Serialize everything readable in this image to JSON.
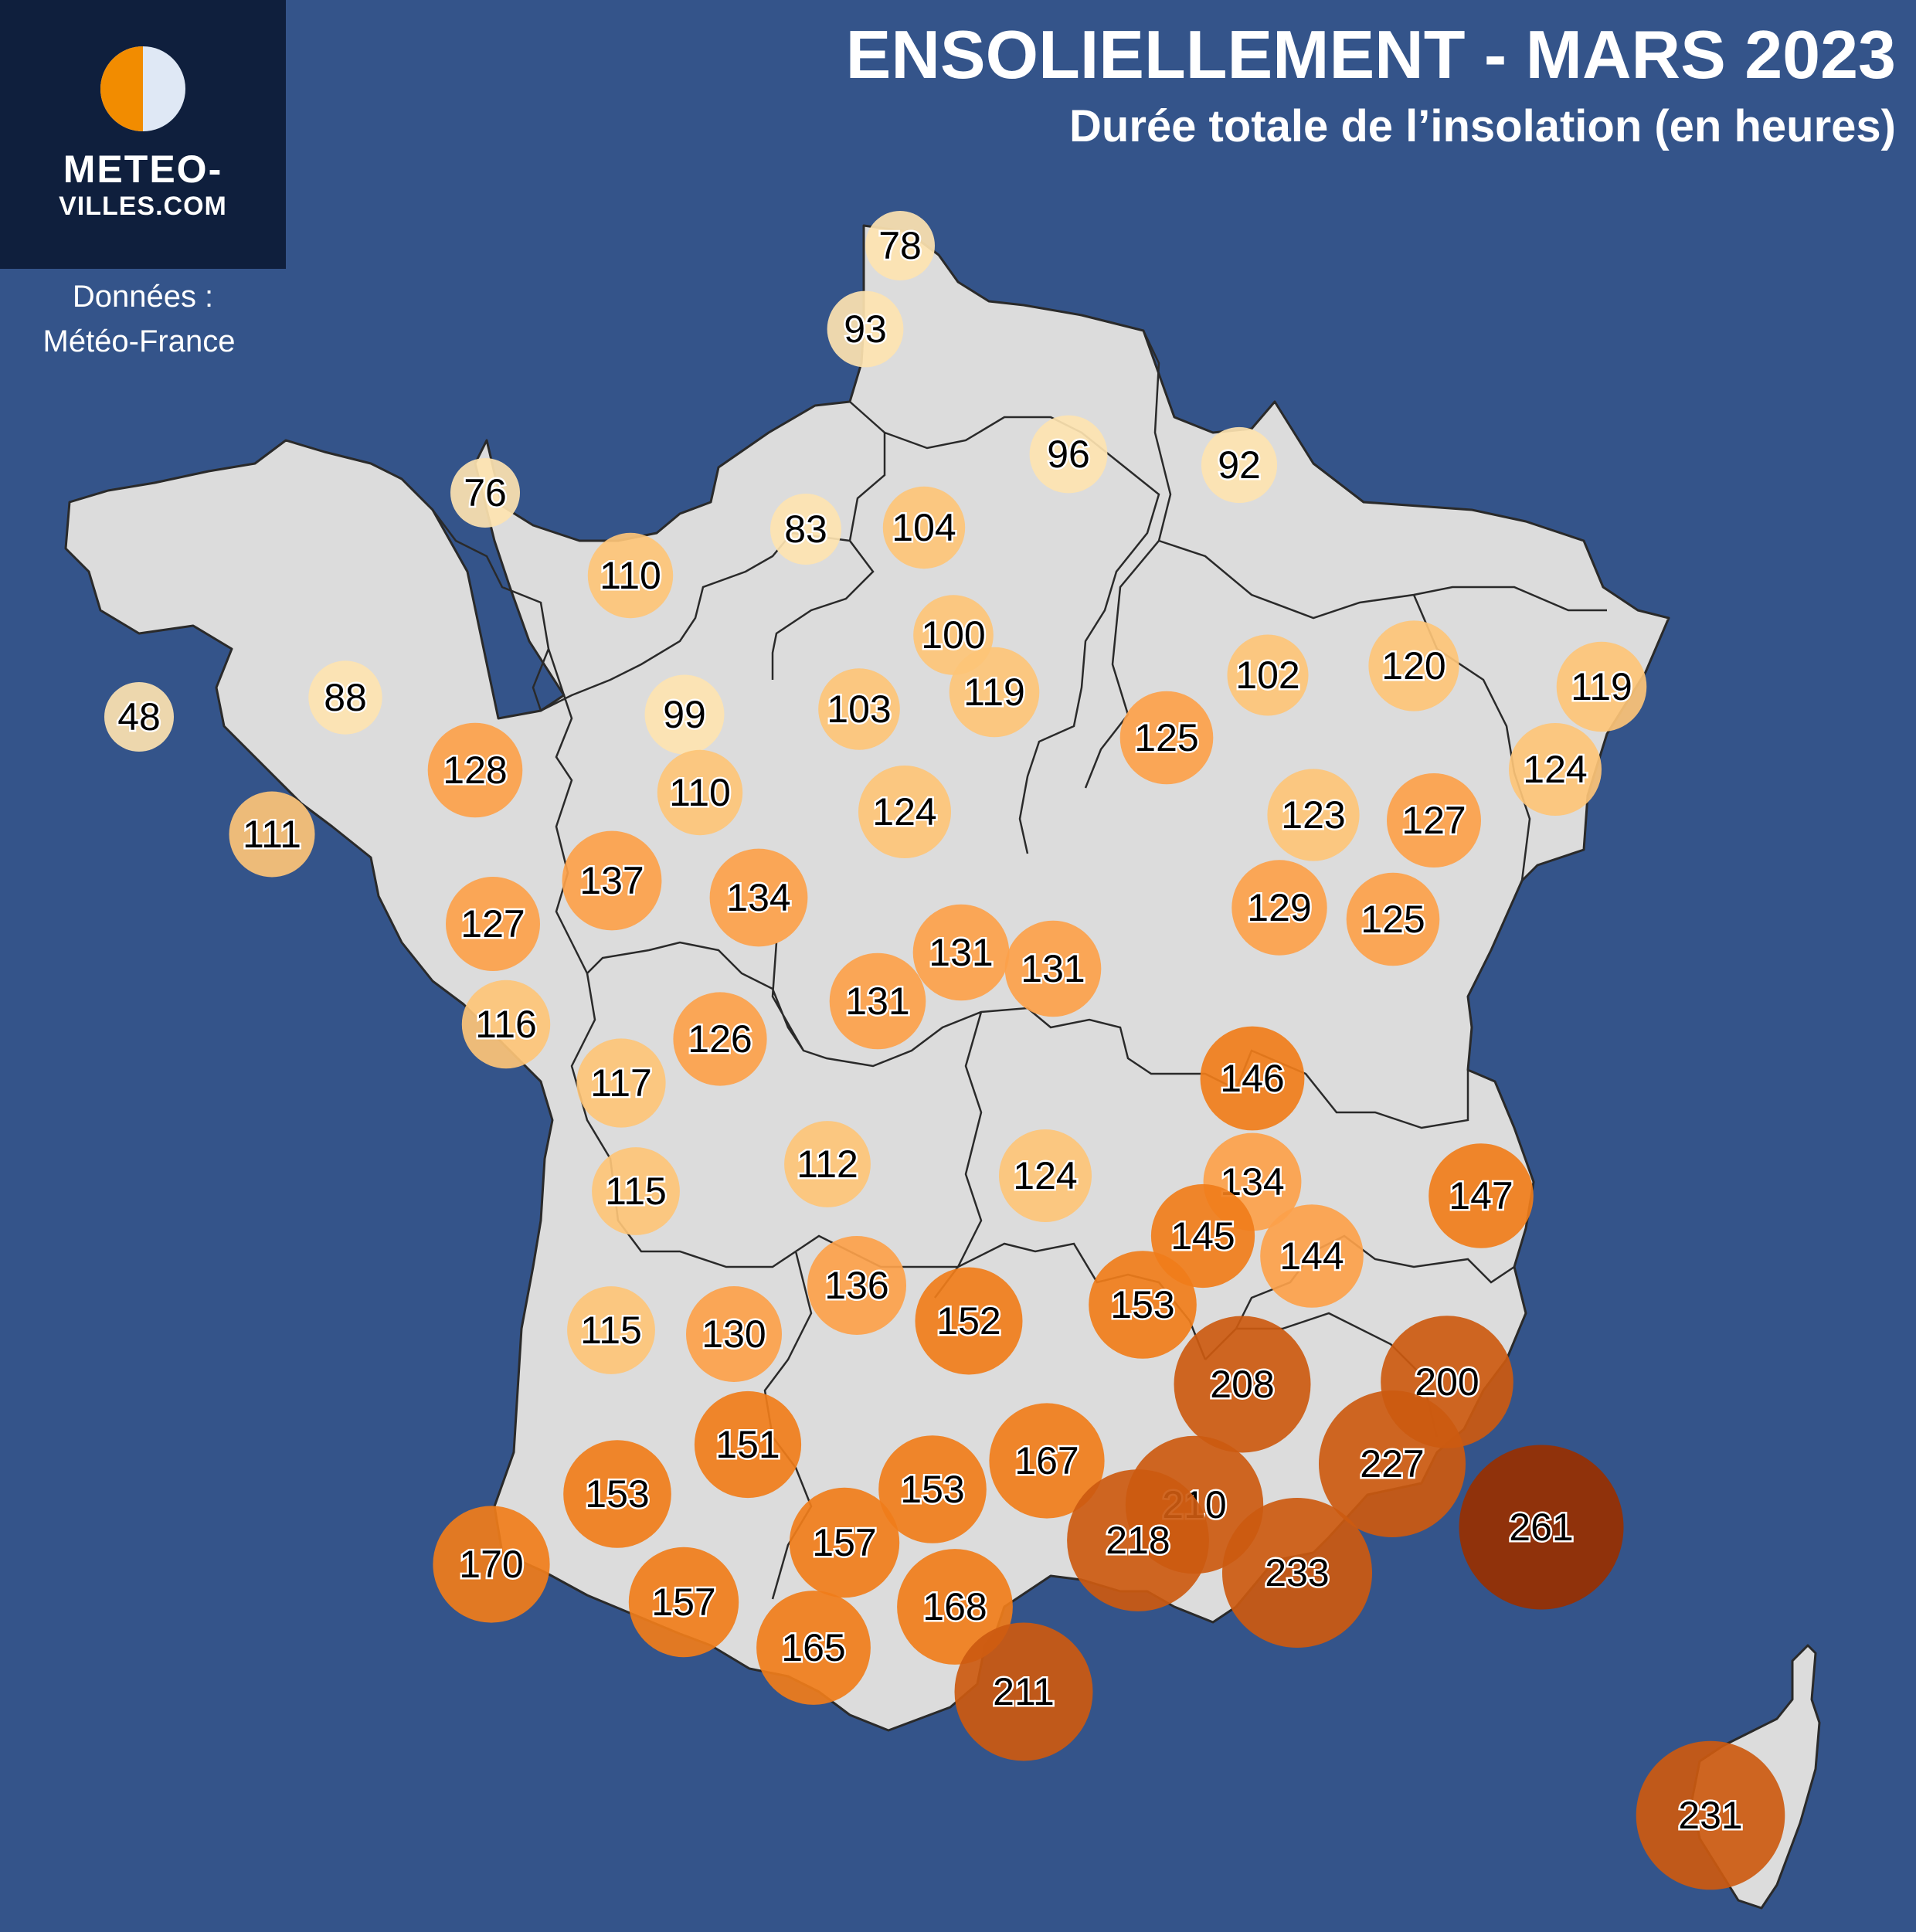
{
  "header": {
    "title": "ENSOLIELLEMENT - MARS 2023",
    "subtitle": "Durée totale de l’insolation (en heures)"
  },
  "logo": {
    "line1": "METEO-",
    "line2": "VILLES.COM"
  },
  "source": {
    "line1": "Données :",
    "line2": "Météo-France"
  },
  "colors": {
    "background": "#34548a",
    "land": "#dcdcdc",
    "border": "#2a2a2a",
    "logo_bg": "#0f1f3d",
    "logo_orange": "#f28c00",
    "logo_light": "#dfe8f5",
    "scale": [
      "#fde3b0",
      "#fdc477",
      "#fca14a",
      "#f07d1a",
      "#cc5a10",
      "#983000"
    ]
  },
  "map": {
    "region": "France",
    "variable": "Durée totale de l’insolation",
    "unit": "heures",
    "stations": [
      {
        "value": 78
      },
      {
        "value": 93
      },
      {
        "value": 96
      },
      {
        "value": 92
      },
      {
        "value": 76
      },
      {
        "value": 83
      },
      {
        "value": 104
      },
      {
        "value": 110
      },
      {
        "value": 100
      },
      {
        "value": 102
      },
      {
        "value": 120
      },
      {
        "value": 119
      },
      {
        "value": 88
      },
      {
        "value": 48
      },
      {
        "value": 99
      },
      {
        "value": 103
      },
      {
        "value": 119
      },
      {
        "value": 125
      },
      {
        "value": 124
      },
      {
        "value": 128
      },
      {
        "value": 110
      },
      {
        "value": 124
      },
      {
        "value": 123
      },
      {
        "value": 127
      },
      {
        "value": 111
      },
      {
        "value": 137
      },
      {
        "value": 134
      },
      {
        "value": 129
      },
      {
        "value": 125
      },
      {
        "value": 127
      },
      {
        "value": 131
      },
      {
        "value": 131
      },
      {
        "value": 131
      },
      {
        "value": 116
      },
      {
        "value": 126
      },
      {
        "value": 146
      },
      {
        "value": 117
      },
      {
        "value": 112
      },
      {
        "value": 124
      },
      {
        "value": 134
      },
      {
        "value": 147
      },
      {
        "value": 115
      },
      {
        "value": 145
      },
      {
        "value": 144
      },
      {
        "value": 136
      },
      {
        "value": 152
      },
      {
        "value": 153
      },
      {
        "value": 115
      },
      {
        "value": 130
      },
      {
        "value": 208
      },
      {
        "value": 200
      },
      {
        "value": 151
      },
      {
        "value": 167
      },
      {
        "value": 227
      },
      {
        "value": 153
      },
      {
        "value": 153
      },
      {
        "value": 210
      },
      {
        "value": 261
      },
      {
        "value": 170
      },
      {
        "value": 157
      },
      {
        "value": 218
      },
      {
        "value": 233
      },
      {
        "value": 157
      },
      {
        "value": 168
      },
      {
        "value": 165
      },
      {
        "value": 211
      },
      {
        "value": 231
      }
    ]
  }
}
